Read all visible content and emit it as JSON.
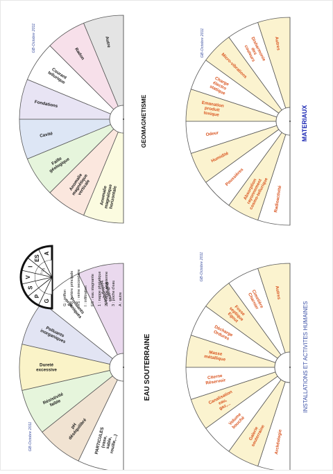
{
  "colors": {
    "credit": "#3b4fa0",
    "black_label": "#1a1a1a",
    "orange_label": "#d9531e",
    "materiaux_title": "#1c28b4",
    "installations_title": "#3a4fa5",
    "stroke": "#555555"
  },
  "panels": {
    "geomagnetisme": {
      "title": "GEOMAGNETISME",
      "credit": "GB-Octobre 2011",
      "segments": [
        {
          "label": "Anomalie magnétique horizontale",
          "fill": "#fbfbe0"
        },
        {
          "label": "Anomalie magnétique verticale",
          "fill": "#fbe7de"
        },
        {
          "label": "Faille géologique",
          "fill": "#e6f5dc"
        },
        {
          "label": "Cavité",
          "fill": "#dde6f5"
        },
        {
          "label": "Fondations",
          "fill": "#e8e4f4"
        },
        {
          "label": "Courant tellurique",
          "fill": "#ffffff"
        },
        {
          "label": "Radon",
          "fill": "#f7e0ea"
        },
        {
          "label": "Autre",
          "fill": "#e4e4e4"
        }
      ]
    },
    "eau": {
      "title": "EAU SOUTERRAINE",
      "credit": "GB-Octobre 2011",
      "segments": [
        {
          "label": "PARTICULES (vase, sable, rouille,...)",
          "fill": "#ffffff"
        },
        {
          "label": "pH déséquilibré",
          "fill": "#f1e3d2"
        },
        {
          "label": "Résistivité faible",
          "fill": "#e6f5dc"
        },
        {
          "label": "Dureté excessive",
          "fill": "#faf3c8"
        },
        {
          "label": "Polluants inorganiques",
          "fill": "#e2e4f3"
        },
        {
          "label": "Polluants organiques",
          "fill": "#ffffff"
        },
        {
          "label": "Polluants biologiques",
          "fill": "#ead9ee"
        }
      ],
      "legend": {
        "dial_labels": [
          "G",
          "P",
          "S",
          "V",
          "I",
          "ES",
          "A"
        ],
        "dial_sub_labels": [
          "1",
          "2",
          "3"
        ],
        "lines": [
          "G : griffon",
          "AP : artère principale",
          "VS : veine secondaire",
          "I : infiltration",
          "ES : eau stagnante",
          "1 : nappe phréatique",
          "2 : nappe artésienne",
          "3 : poche d'eau",
          "A : autre"
        ]
      }
    },
    "materiaux": {
      "title": "MATERIAUX",
      "credit": "GB-Octobre 2011",
      "segments": [
        {
          "label": "Radioactivité",
          "fill": "#ffffff"
        },
        {
          "label": "Absorption rayonnement cosmo-tellurique",
          "fill": "#fbf3cf"
        },
        {
          "label": "Poussières",
          "fill": "#ffffff"
        },
        {
          "label": "Humidité",
          "fill": "#fbf3cf"
        },
        {
          "label": "Odeur",
          "fill": "#ffffff"
        },
        {
          "label": "Emanation produit toxique",
          "fill": "#fbf3cf"
        },
        {
          "label": "Charge électro statique",
          "fill": "#ffffff"
        },
        {
          "label": "Micro-vibrations",
          "fill": "#fbf3cf"
        },
        {
          "label": "Disharmonie des couleurs",
          "fill": "#ffffff"
        },
        {
          "label": "Autres",
          "fill": "#fbf3cf"
        }
      ]
    },
    "installations": {
      "title": "INSTALLATIONS ET ACTIVITES HUMAINES",
      "credit": "GB-Octobre 2011",
      "segments": [
        {
          "label": "Archéologie",
          "fill": "#ffffff"
        },
        {
          "label": "Galerie souterraine",
          "fill": "#fbf3cf"
        },
        {
          "label": "Volume bouché",
          "fill": "#ffffff"
        },
        {
          "label": "Canalisation eau, gaz,...",
          "fill": "#fbf3cf"
        },
        {
          "label": "Citerne Réservoir",
          "fill": "#ffffff"
        },
        {
          "label": "Masse métallique",
          "fill": "#fbf3cf"
        },
        {
          "label": "Décharge Ordures",
          "fill": "#ffffff"
        },
        {
          "label": "Fosse septique Egout",
          "fill": "#fbf3cf"
        },
        {
          "label": "Cimetière Charnier",
          "fill": "#ffffff"
        },
        {
          "label": "Autres",
          "fill": "#fbf3cf"
        }
      ]
    }
  }
}
